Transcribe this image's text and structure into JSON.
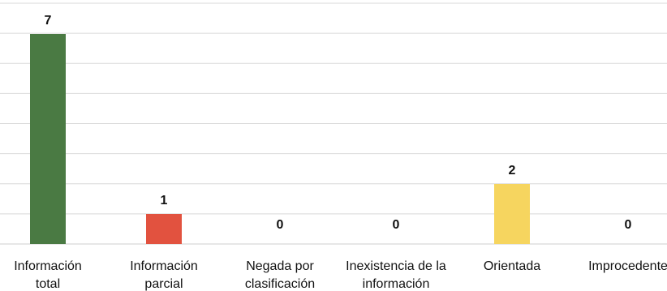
{
  "chart_data": {
    "type": "bar",
    "categories": [
      [
        "Información",
        "total"
      ],
      [
        "Información",
        "parcial"
      ],
      [
        "Negada por",
        "clasificación"
      ],
      [
        "Inexistencia de la",
        "información"
      ],
      [
        "Orientada"
      ],
      [
        "Improcedente"
      ]
    ],
    "values": [
      7,
      1,
      0,
      0,
      2,
      0
    ],
    "value_labels": [
      "7",
      "1",
      "0",
      "0",
      "2",
      "0"
    ],
    "colors": [
      "#4a7a43",
      "#e2523f",
      "#d9d9d9",
      "#d9d9d9",
      "#f6d55f",
      "#d9d9d9"
    ],
    "ylim": [
      0,
      7
    ],
    "grid": true,
    "legend": "none"
  }
}
